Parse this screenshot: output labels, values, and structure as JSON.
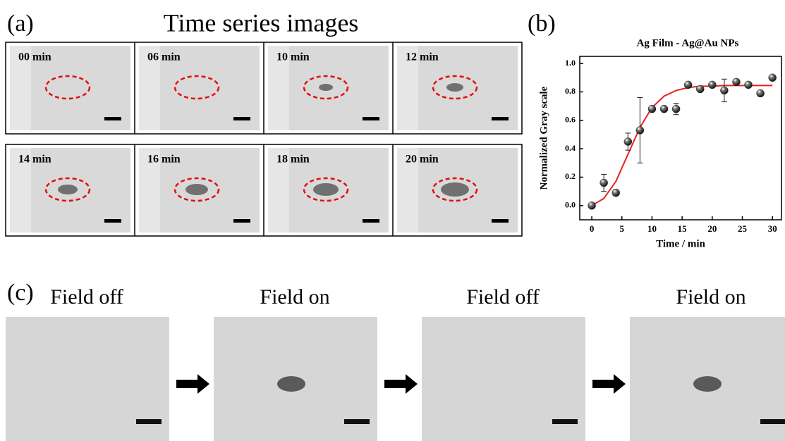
{
  "panel_a": {
    "label": "(a)",
    "title": "Time series images",
    "frames": [
      "00 min",
      "06 min",
      "10 min",
      "12 min",
      "14 min",
      "16 min",
      "18 min",
      "20 min"
    ]
  },
  "panel_b": {
    "label": "(b)"
  },
  "chart_data": {
    "type": "scatter",
    "title": "Ag Film - Ag@Au NPs",
    "x_label": "Time / min",
    "y_label": "Normalized Gray scale",
    "xlim": [
      -2,
      31.5
    ],
    "ylim": [
      -0.1,
      1.05
    ],
    "xticks": [
      0,
      5,
      10,
      15,
      20,
      25,
      30
    ],
    "yticks": [
      {
        "value": 0,
        "label": "0.0"
      },
      {
        "value": 0.2,
        "label": "0.2"
      },
      {
        "value": 0.4,
        "label": "0.4"
      },
      {
        "value": 0.6,
        "label": "0.6"
      },
      {
        "value": 0.8,
        "label": "0.8"
      },
      {
        "value": 1,
        "label": "1.0"
      }
    ],
    "series": [
      {
        "color": "#222222",
        "x": [
          0,
          2,
          4,
          6,
          8,
          10,
          12,
          14,
          16,
          18,
          20,
          22,
          24,
          26,
          28,
          30
        ],
        "values": [
          0.0,
          0.16,
          0.09,
          0.45,
          0.53,
          0.68,
          0.68,
          0.68,
          0.85,
          0.82,
          0.85,
          0.81,
          0.87,
          0.85,
          0.79,
          0.9
        ],
        "errors": [
          null,
          0.06,
          0.02,
          0.06,
          0.23,
          null,
          null,
          0.04,
          null,
          null,
          null,
          0.08,
          null,
          null,
          null,
          null
        ]
      },
      {
        "color": "#e8221c",
        "x": [
          0,
          2,
          4,
          6,
          8,
          10,
          12,
          14,
          16,
          18,
          20,
          22,
          24,
          26,
          28,
          30
        ],
        "values": [
          0.0,
          0.05,
          0.17,
          0.36,
          0.55,
          0.69,
          0.77,
          0.81,
          0.83,
          0.84,
          0.84,
          0.845,
          0.845,
          0.845,
          0.845,
          0.845
        ]
      }
    ]
  },
  "panel_c": {
    "label": "(c)",
    "frames": [
      "Field off",
      "Field on",
      "Field off",
      "Field on"
    ]
  }
}
